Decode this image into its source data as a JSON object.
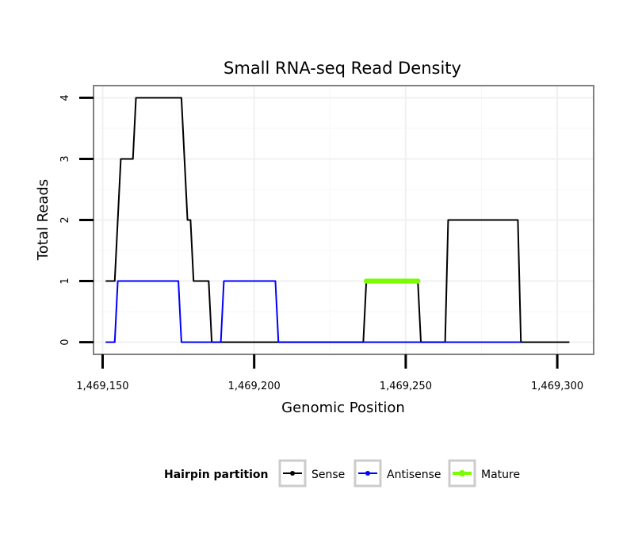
{
  "chart_data": {
    "type": "line",
    "title": "Small RNA-seq Read Density",
    "xlabel": "Genomic Position",
    "ylabel": "Total Reads",
    "xlim": [
      1469147,
      1469312
    ],
    "ylim": [
      -0.2,
      4.2
    ],
    "x_ticks": [
      1469150,
      1469200,
      1469250,
      1469300
    ],
    "x_tick_labels": [
      "1,469,150",
      "1,469,200",
      "1,469,250",
      "1,469,300"
    ],
    "y_ticks": [
      0,
      1,
      2,
      3,
      4
    ],
    "y_tick_labels": [
      "0",
      "1",
      "2",
      "3",
      "4"
    ],
    "grid": true,
    "legend": {
      "title": "Hairpin partition",
      "position": "bottom",
      "entries": [
        "Sense",
        "Antisense",
        "Mature"
      ]
    },
    "series": [
      {
        "name": "Sense",
        "color": "#000000",
        "x": [
          1469151,
          1469154,
          1469155,
          1469156,
          1469157,
          1469159,
          1469160,
          1469161,
          1469176,
          1469177,
          1469178,
          1469179,
          1469180,
          1469181,
          1469185,
          1469186,
          1469187,
          1469236,
          1469237,
          1469254,
          1469255,
          1469263,
          1469264,
          1469287,
          1469288,
          1469304
        ],
        "values": [
          1,
          1,
          2,
          3,
          3,
          3,
          3,
          4,
          4,
          3,
          2,
          2,
          1,
          1,
          1,
          0,
          0,
          0,
          1,
          1,
          0,
          0,
          2,
          2,
          0,
          0
        ]
      },
      {
        "name": "Antisense",
        "color": "#0000ff",
        "x": [
          1469151,
          1469154,
          1469155,
          1469175,
          1469176,
          1469187,
          1469189,
          1469190,
          1469207,
          1469208,
          1469288
        ],
        "values": [
          0,
          0,
          1,
          1,
          0,
          0,
          0,
          1,
          1,
          0,
          0
        ]
      },
      {
        "name": "Mature",
        "color": "#7cfc00",
        "x": [
          1469237,
          1469254
        ],
        "values": [
          1,
          1
        ]
      }
    ]
  }
}
